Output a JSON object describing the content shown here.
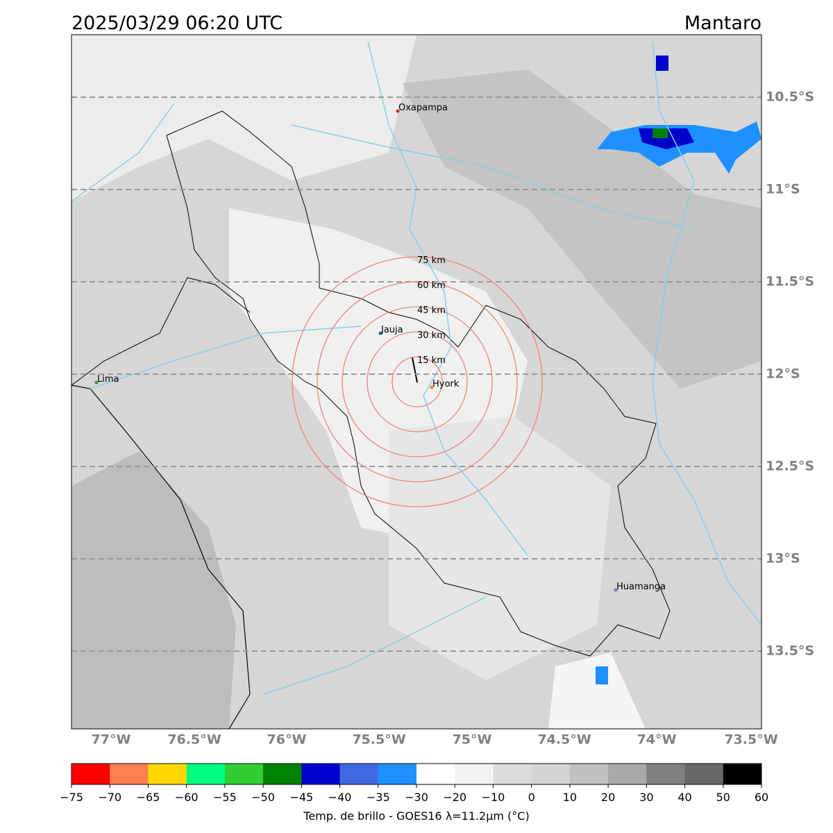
{
  "header": {
    "title": "2025/03/29 06:20 UTC",
    "region": "Mantaro"
  },
  "map": {
    "lat_labels": [
      "10.5°S",
      "11°S",
      "11.5°S",
      "12°S",
      "12.5°S",
      "13°S",
      "13.5°S"
    ],
    "lon_labels": [
      "77°W",
      "76.5°W",
      "76°W",
      "75.5°W",
      "75°W",
      "74.5°W",
      "74°W",
      "73.5°W"
    ],
    "cities": [
      {
        "label": "Oxapampa",
        "color": "#d62728"
      },
      {
        "label": "Jauja",
        "color": "#1f77b4"
      },
      {
        "label": "Hyork",
        "color": "#ff7f0e"
      },
      {
        "label": "Lima",
        "color": "#2ca02c"
      },
      {
        "label": "Huamanga",
        "color": "#9467bd"
      }
    ],
    "rings": [
      "15 km",
      "30 km",
      "45 km",
      "60 km",
      "75 km"
    ]
  },
  "colorbar": {
    "colors": [
      "#ff0000",
      "#ff7f50",
      "#ffd700",
      "#00ff7f",
      "#32cd32",
      "#008000",
      "#0000cd",
      "#4169e1",
      "#1e90ff",
      "#ffffff",
      "#f2f2f2",
      "#dcdcdc",
      "#d3d3d3",
      "#c0c0c0",
      "#a9a9a9",
      "#808080",
      "#696969",
      "#000000"
    ],
    "ticks": [
      "−75",
      "−70",
      "−65",
      "−60",
      "−55",
      "−50",
      "−45",
      "−40",
      "−35",
      "−30",
      "−20",
      "−10",
      "0",
      "10",
      "20",
      "30",
      "40",
      "50",
      "60"
    ],
    "label": "Temp. de brillo - GOES16 λ=11.2μm (°C)"
  }
}
